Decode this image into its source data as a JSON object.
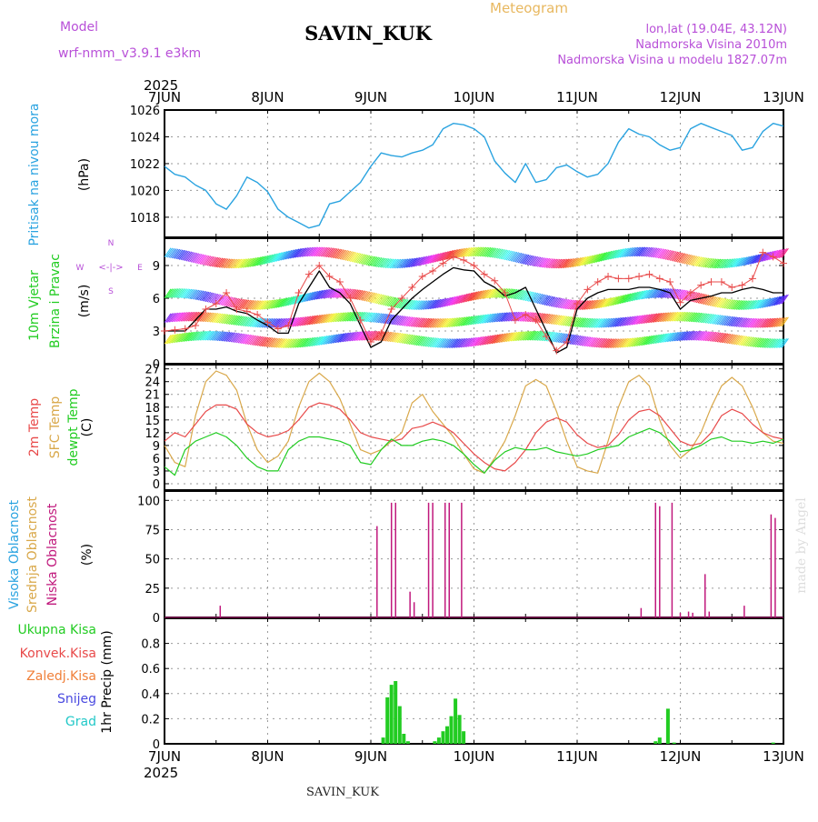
{
  "header": {
    "model_label": "Model",
    "model_name": "wrf-nmm_v3.9.1  e3km",
    "station": "SAVIN_KUK",
    "product": "Meteogram",
    "coords": "lon,lat (19.04E, 43.12N)",
    "altitude": "Nadmorska Visina 2010m",
    "model_altitude": "Nadmorska Visina u modelu 1827.07m",
    "footer_station": "SAVIN_KUK",
    "watermark": "made by Angel"
  },
  "colors": {
    "pressure": "#2aa3e0",
    "wind_green": "#22cc22",
    "temp2m": "#e84a4a",
    "sfc": "#d9a84a",
    "dew": "#22cc22",
    "high_cloud": "#2aa3e0",
    "mid_cloud": "#d9a84a",
    "low_cloud": "#c0187c",
    "purple": "#b84fd8",
    "precip": "#22cc22",
    "total_rain": "#22cc22",
    "conv_rain": "#e84a4a",
    "frozen": "#f0803a",
    "snow": "#4a4ae0",
    "hail": "#22c8c8"
  },
  "time_axis": {
    "year": "2025",
    "labels": [
      "7JUN",
      "8JUN",
      "9JUN",
      "10JUN",
      "11JUN",
      "12JUN",
      "13JUN"
    ]
  },
  "chart_data": [
    {
      "type": "line",
      "panel": "pressure",
      "ylabel": "Pritisak na nivou mora",
      "unit": "(hPa)",
      "ylim": [
        1016.5,
        1026
      ],
      "yticks": [
        1018,
        1020,
        1022,
        1024,
        1026
      ],
      "x_days": [
        0,
        0.1,
        0.2,
        0.3,
        0.4,
        0.5,
        0.6,
        0.7,
        0.8,
        0.9,
        1.0,
        1.1,
        1.2,
        1.3,
        1.4,
        1.5,
        1.6,
        1.7,
        1.8,
        1.9,
        2.0,
        2.1,
        2.2,
        2.3,
        2.4,
        2.5,
        2.6,
        2.7,
        2.8,
        2.9,
        3.0,
        3.1,
        3.2,
        3.3,
        3.4,
        3.5,
        3.6,
        3.7,
        3.8,
        3.9,
        4.0,
        4.1,
        4.2,
        4.3,
        4.4,
        4.5,
        4.6,
        4.7,
        4.8,
        4.9,
        5.0,
        5.1,
        5.2,
        5.3,
        5.4,
        5.5,
        5.6,
        5.7,
        5.8,
        5.9,
        6.0
      ],
      "values": [
        1021.8,
        1021.2,
        1021.0,
        1020.4,
        1020.0,
        1019.0,
        1018.6,
        1019.6,
        1021.0,
        1020.6,
        1019.9,
        1018.6,
        1018.0,
        1017.6,
        1017.2,
        1017.4,
        1019.0,
        1019.2,
        1019.9,
        1020.6,
        1021.8,
        1022.8,
        1022.6,
        1022.5,
        1022.8,
        1023.0,
        1023.4,
        1024.6,
        1025.0,
        1024.9,
        1024.6,
        1024.0,
        1022.2,
        1021.3,
        1020.6,
        1022.0,
        1020.6,
        1020.8,
        1021.7,
        1021.9,
        1021.4,
        1021.0,
        1021.2,
        1022.0,
        1023.6,
        1024.6,
        1024.2,
        1024.0,
        1023.4,
        1023.0,
        1023.2,
        1024.6,
        1025.0,
        1024.7,
        1024.4,
        1024.1,
        1023.0,
        1023.2,
        1024.4,
        1025.0,
        1024.8
      ]
    },
    {
      "type": "line",
      "panel": "wind",
      "ylabel1": "10m Vjetar",
      "ylabel2": "Brzina i Pravac",
      "unit": "(m/s)",
      "compass": {
        "n": "N",
        "s": "S",
        "w": "W",
        "e": "E",
        "arrows": "<-|->"
      },
      "ylim": [
        0,
        11.5
      ],
      "yticks": [
        0,
        3,
        6,
        9
      ],
      "x_days": [
        0,
        0.1,
        0.2,
        0.3,
        0.4,
        0.5,
        0.6,
        0.7,
        0.8,
        0.9,
        1.0,
        1.1,
        1.2,
        1.3,
        1.4,
        1.5,
        1.6,
        1.7,
        1.8,
        1.9,
        2.0,
        2.1,
        2.2,
        2.3,
        2.4,
        2.5,
        2.6,
        2.7,
        2.8,
        2.9,
        3.0,
        3.1,
        3.2,
        3.3,
        3.4,
        3.5,
        3.6,
        3.7,
        3.8,
        3.9,
        4.0,
        4.1,
        4.2,
        4.3,
        4.4,
        4.5,
        4.6,
        4.7,
        4.8,
        4.9,
        5.0,
        5.1,
        5.2,
        5.3,
        5.4,
        5.5,
        5.6,
        5.7,
        5.8,
        5.9,
        6.0
      ],
      "speed": [
        3.0,
        3.0,
        3.0,
        4.0,
        5.0,
        5.0,
        5.2,
        4.8,
        4.6,
        4.0,
        3.5,
        2.8,
        2.8,
        5.5,
        7.0,
        8.5,
        7.0,
        6.5,
        5.5,
        3.5,
        1.5,
        2.0,
        4.0,
        5.0,
        6.0,
        6.8,
        7.5,
        8.2,
        8.8,
        8.6,
        8.5,
        7.5,
        7.0,
        6.2,
        6.5,
        7.0,
        5.0,
        3.0,
        1.0,
        1.5,
        5.0,
        6.0,
        6.5,
        6.8,
        6.8,
        6.8,
        7.0,
        7.0,
        6.8,
        6.5,
        5.0,
        5.8,
        6.0,
        6.2,
        6.5,
        6.5,
        6.8,
        7.0,
        6.8,
        6.5,
        6.5
      ],
      "gust": [
        3.0,
        3.1,
        3.2,
        3.5,
        5.0,
        5.5,
        6.5,
        5.0,
        4.8,
        4.5,
        3.8,
        3.2,
        3.5,
        6.5,
        8.2,
        9.0,
        8.0,
        7.5,
        6.0,
        4.0,
        2.0,
        2.8,
        5.0,
        6.0,
        7.0,
        8.0,
        8.5,
        9.2,
        9.8,
        9.5,
        9.0,
        8.2,
        7.6,
        6.5,
        4.0,
        4.5,
        4.0,
        2.5,
        1.2,
        2.0,
        5.5,
        6.8,
        7.5,
        8.0,
        7.8,
        7.8,
        8.0,
        8.2,
        7.8,
        7.5,
        5.6,
        6.5,
        7.2,
        7.5,
        7.5,
        7.0,
        7.2,
        7.8,
        10.2,
        9.8,
        9.2
      ]
    },
    {
      "type": "line",
      "panel": "temperature",
      "labels": [
        "2m Temp",
        "SFC Temp",
        "dewpt Temp"
      ],
      "unit": "(C)",
      "ylim": [
        -1.5,
        28
      ],
      "yticks": [
        0,
        3,
        6,
        9,
        12,
        15,
        18,
        21,
        24,
        27
      ],
      "x_days": [
        0,
        0.1,
        0.2,
        0.3,
        0.4,
        0.5,
        0.6,
        0.7,
        0.8,
        0.9,
        1.0,
        1.1,
        1.2,
        1.3,
        1.4,
        1.5,
        1.6,
        1.7,
        1.8,
        1.9,
        2.0,
        2.1,
        2.2,
        2.3,
        2.4,
        2.5,
        2.6,
        2.7,
        2.8,
        2.9,
        3.0,
        3.1,
        3.2,
        3.3,
        3.4,
        3.5,
        3.6,
        3.7,
        3.8,
        3.9,
        4.0,
        4.1,
        4.2,
        4.3,
        4.4,
        4.5,
        4.6,
        4.7,
        4.8,
        4.9,
        5.0,
        5.1,
        5.2,
        5.3,
        5.4,
        5.5,
        5.6,
        5.7,
        5.8,
        5.9,
        6.0
      ],
      "t2m": [
        10.0,
        12.0,
        11.0,
        14.0,
        17.0,
        18.5,
        18.5,
        17.5,
        14.0,
        12.0,
        11.0,
        11.5,
        12.5,
        15.0,
        18.0,
        19.0,
        18.5,
        17.5,
        15.0,
        12.0,
        11.0,
        10.5,
        10.0,
        10.5,
        13.0,
        13.5,
        14.5,
        13.5,
        12.0,
        9.5,
        7.0,
        5.0,
        3.5,
        3.0,
        5.0,
        8.0,
        12.0,
        14.5,
        15.5,
        14.5,
        11.5,
        9.5,
        8.5,
        9.0,
        11.5,
        15.0,
        17.0,
        17.5,
        16.0,
        13.0,
        10.0,
        9.0,
        9.5,
        12.0,
        16.0,
        17.5,
        16.5,
        14.0,
        12.0,
        11.0,
        10.5
      ],
      "sfc": [
        9.0,
        5.0,
        4.0,
        16.0,
        24.0,
        26.5,
        25.5,
        22.0,
        14.0,
        8.0,
        5.0,
        6.5,
        10.0,
        18.0,
        24.0,
        26.0,
        24.0,
        20.0,
        14.0,
        8.0,
        7.0,
        8.0,
        10.0,
        12.0,
        19.0,
        21.0,
        17.0,
        14.0,
        11.0,
        7.0,
        3.5,
        2.5,
        6.0,
        10.0,
        16.0,
        23.0,
        24.5,
        23.0,
        17.0,
        10.0,
        4.0,
        3.0,
        2.5,
        10.0,
        18.0,
        24.0,
        25.5,
        23.0,
        15.0,
        9.0,
        6.0,
        8.0,
        12.0,
        18.0,
        23.0,
        25.0,
        23.0,
        18.0,
        12.0,
        10.0,
        9.5
      ],
      "dew": [
        4.0,
        2.0,
        8.0,
        10.0,
        11.0,
        12.0,
        11.0,
        9.0,
        6.0,
        4.0,
        3.0,
        3.0,
        8.0,
        10.0,
        11.0,
        11.0,
        10.5,
        10.0,
        9.0,
        5.0,
        4.5,
        8.0,
        10.5,
        9.0,
        9.0,
        10.0,
        10.5,
        10.0,
        9.0,
        7.0,
        4.5,
        2.5,
        5.5,
        7.5,
        8.5,
        8.0,
        8.0,
        8.5,
        7.5,
        7.0,
        6.5,
        7.0,
        8.0,
        8.5,
        9.0,
        11.0,
        12.0,
        13.0,
        12.0,
        10.0,
        7.5,
        8.0,
        9.0,
        10.5,
        11.0,
        10.0,
        10.0,
        9.5,
        10.0,
        9.5,
        10.5
      ]
    },
    {
      "type": "bar",
      "panel": "clouds",
      "labels": [
        "Visoka Oblacnost",
        "Srednja Oblacnost",
        "Niska Oblacnost"
      ],
      "unit": "(%)",
      "ylim": [
        0,
        100
      ],
      "yticks": [
        0,
        25,
        50,
        75,
        100
      ],
      "bars": [
        {
          "day": 0.54,
          "value": 10
        },
        {
          "day": 2.06,
          "value": 78
        },
        {
          "day": 2.2,
          "value": 98
        },
        {
          "day": 2.24,
          "value": 98
        },
        {
          "day": 2.38,
          "value": 22
        },
        {
          "day": 2.42,
          "value": 13
        },
        {
          "day": 2.56,
          "value": 98
        },
        {
          "day": 2.6,
          "value": 98
        },
        {
          "day": 2.72,
          "value": 98
        },
        {
          "day": 2.76,
          "value": 98
        },
        {
          "day": 2.88,
          "value": 98
        },
        {
          "day": 4.62,
          "value": 8
        },
        {
          "day": 4.76,
          "value": 98
        },
        {
          "day": 4.8,
          "value": 95
        },
        {
          "day": 4.92,
          "value": 98
        },
        {
          "day": 5.0,
          "value": 4
        },
        {
          "day": 5.08,
          "value": 5
        },
        {
          "day": 5.12,
          "value": 4
        },
        {
          "day": 5.24,
          "value": 37
        },
        {
          "day": 5.28,
          "value": 5
        },
        {
          "day": 5.62,
          "value": 10
        },
        {
          "day": 5.88,
          "value": 88
        },
        {
          "day": 5.92,
          "value": 85
        }
      ]
    },
    {
      "type": "bar",
      "panel": "precip",
      "labels": [
        "Ukupna Kisa",
        "Konvek.Kisa",
        "Zaledj.Kisa",
        "Snijeg",
        "Grad"
      ],
      "unit": "1hr Precip (mm)",
      "ylim": [
        0,
        1.0
      ],
      "yticks": [
        0,
        0.2,
        0.4,
        0.6,
        0.8
      ],
      "bars": [
        {
          "day": 2.12,
          "value": 0.05
        },
        {
          "day": 2.16,
          "value": 0.37
        },
        {
          "day": 2.2,
          "value": 0.47
        },
        {
          "day": 2.24,
          "value": 0.5
        },
        {
          "day": 2.28,
          "value": 0.3
        },
        {
          "day": 2.32,
          "value": 0.08
        },
        {
          "day": 2.36,
          "value": 0.02
        },
        {
          "day": 2.62,
          "value": 0.02
        },
        {
          "day": 2.66,
          "value": 0.05
        },
        {
          "day": 2.7,
          "value": 0.1
        },
        {
          "day": 2.74,
          "value": 0.14
        },
        {
          "day": 2.78,
          "value": 0.22
        },
        {
          "day": 2.82,
          "value": 0.36
        },
        {
          "day": 2.86,
          "value": 0.23
        },
        {
          "day": 2.9,
          "value": 0.1
        },
        {
          "day": 4.76,
          "value": 0.02
        },
        {
          "day": 4.8,
          "value": 0.05
        },
        {
          "day": 4.88,
          "value": 0.28
        },
        {
          "day": 4.94,
          "value": 0.01
        },
        {
          "day": 5.9,
          "value": 0.01
        }
      ]
    }
  ]
}
